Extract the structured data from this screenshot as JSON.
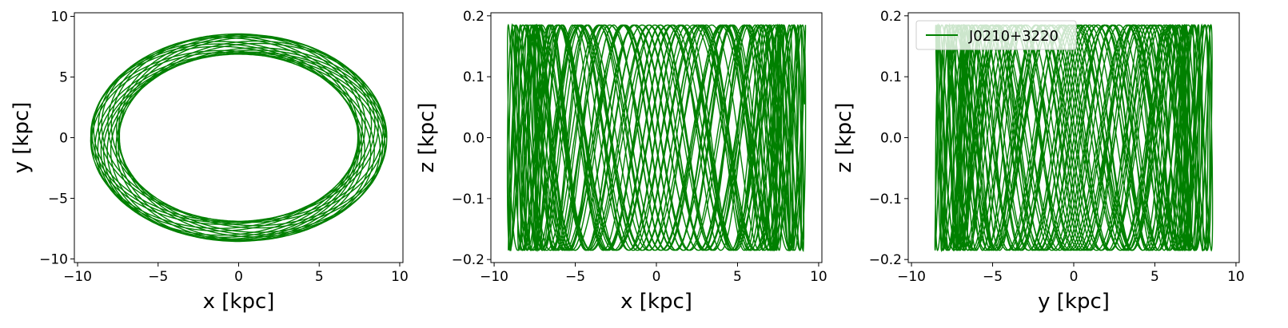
{
  "chart_data": [
    {
      "type": "line",
      "panel": "x-y",
      "title": "",
      "xlabel": "x [kpc]",
      "ylabel": "y [kpc]",
      "xlim": [
        -10.2,
        10.2
      ],
      "ylim": [
        -10.3,
        10.3
      ],
      "xticks": [
        -10,
        -5,
        0,
        5,
        10
      ],
      "xtick_labels": [
        "−10",
        "−5",
        "0",
        "5",
        "10"
      ],
      "yticks": [
        -10,
        -5,
        0,
        5,
        10
      ],
      "ytick_labels": [
        "−10",
        "−5",
        "0",
        "5",
        "10"
      ],
      "grid": false,
      "color": "#008000",
      "orbit": {
        "r_min": 7.4,
        "r_max": 9.2,
        "z_amplitude": 0.185
      }
    },
    {
      "type": "line",
      "panel": "x-z",
      "title": "",
      "xlabel": "x [kpc]",
      "ylabel": "z [kpc]",
      "xlim": [
        -10.2,
        10.2
      ],
      "ylim": [
        -0.205,
        0.205
      ],
      "xticks": [
        -10,
        -5,
        0,
        5,
        10
      ],
      "xtick_labels": [
        "−10",
        "−5",
        "0",
        "5",
        "10"
      ],
      "yticks": [
        -0.2,
        -0.1,
        0.0,
        0.1,
        0.2
      ],
      "ytick_labels": [
        "−0.2",
        "−0.1",
        "0.0",
        "0.1",
        "0.2"
      ],
      "grid": false,
      "color": "#008000",
      "orbit": {
        "r_min": 7.4,
        "r_max": 9.2,
        "z_amplitude": 0.185
      }
    },
    {
      "type": "line",
      "panel": "y-z",
      "title": "",
      "xlabel": "y [kpc]",
      "ylabel": "z [kpc]",
      "xlim": [
        -10.2,
        10.2
      ],
      "ylim": [
        -0.205,
        0.205
      ],
      "xticks": [
        -10,
        -5,
        0,
        5,
        10
      ],
      "xtick_labels": [
        "−10",
        "−5",
        "0",
        "5",
        "10"
      ],
      "yticks": [
        -0.2,
        -0.1,
        0.0,
        0.1,
        0.2
      ],
      "ytick_labels": [
        "−0.2",
        "−0.1",
        "0.0",
        "0.1",
        "0.2"
      ],
      "grid": false,
      "color": "#008000",
      "legend": {
        "position": "top-left",
        "entries": [
          "J0210+3220"
        ]
      },
      "orbit": {
        "r_min": 7.4,
        "r_max": 9.2,
        "z_amplitude": 0.185
      }
    }
  ]
}
